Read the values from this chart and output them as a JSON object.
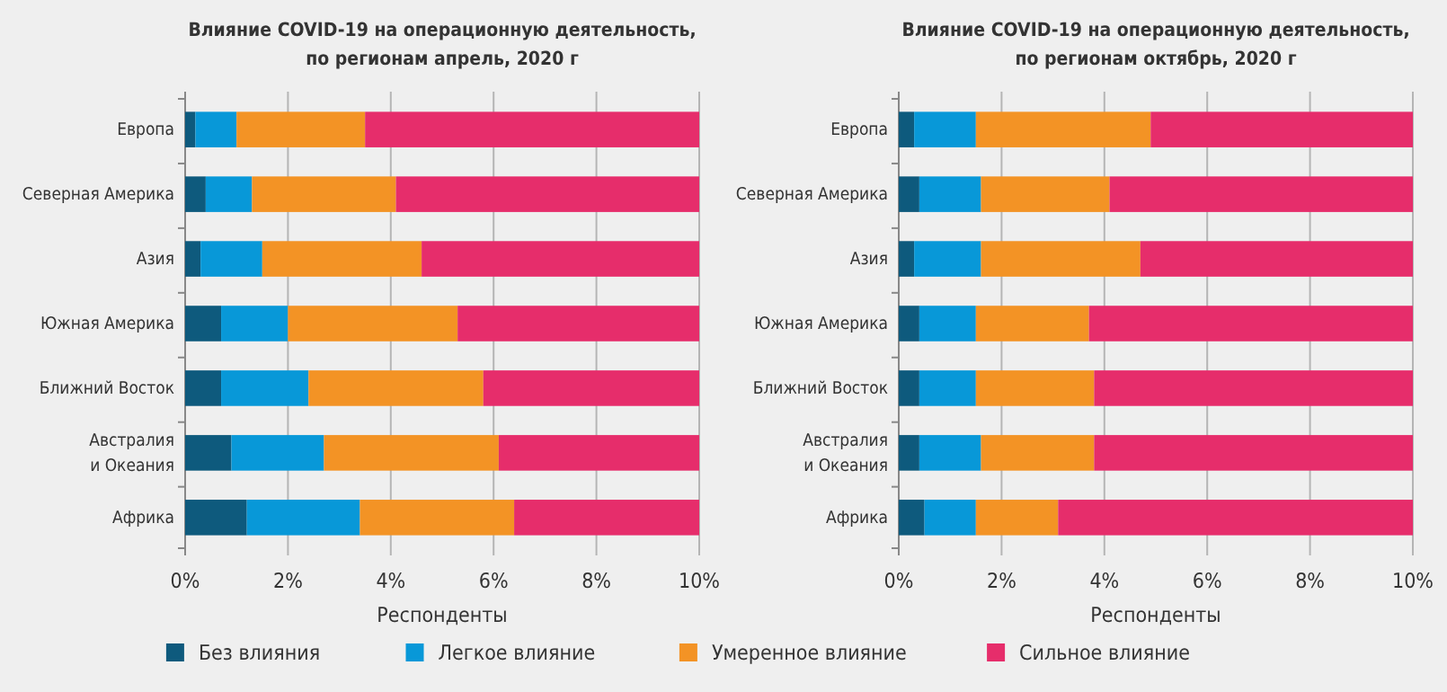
{
  "chart_data": [
    {
      "type": "bar",
      "orientation": "horizontal",
      "stacked": true,
      "title": "Влияние COVID-19 на операционную деятельность,\nпо регионам апрель, 2020 г",
      "xlabel": "Респонденты",
      "categories": [
        "Европа",
        "Северная Америка",
        "Азия",
        "Южная Америка",
        "Ближний Восток",
        "Австралия\nи Океания",
        "Африка"
      ],
      "xlim": [
        0,
        10
      ],
      "xticks": [
        {
          "value": 0,
          "label": "0%"
        },
        {
          "value": 2,
          "label": "2%"
        },
        {
          "value": 4,
          "label": "4%"
        },
        {
          "value": 6,
          "label": "6%"
        },
        {
          "value": 8,
          "label": "8%"
        },
        {
          "value": 10,
          "label": "10%"
        }
      ],
      "grid": "x",
      "legend": "bottom",
      "series": [
        {
          "name": "Без влияния",
          "color": "#0e5a7d",
          "values": [
            0.2,
            0.4,
            0.3,
            0.7,
            0.7,
            0.9,
            1.2
          ]
        },
        {
          "name": "Легкое влияние",
          "color": "#0898d8",
          "values": [
            0.8,
            0.9,
            1.2,
            1.3,
            1.7,
            1.8,
            2.2
          ]
        },
        {
          "name": "Умеренное влияние",
          "color": "#f39325",
          "values": [
            2.5,
            2.8,
            3.1,
            3.3,
            3.4,
            3.4,
            3.0
          ]
        },
        {
          "name": "Сильное влияние",
          "color": "#e62d6b",
          "values": [
            6.5,
            5.9,
            5.4,
            4.7,
            4.2,
            3.9,
            3.6
          ]
        }
      ]
    },
    {
      "type": "bar",
      "orientation": "horizontal",
      "stacked": true,
      "title": "Влияние COVID-19 на операционную деятельность,\nпо регионам октябрь, 2020 г",
      "xlabel": "Респонденты",
      "categories": [
        "Европа",
        "Северная Америка",
        "Азия",
        "Южная Америка",
        "Ближний Восток",
        "Австралия\nи Океания",
        "Африка"
      ],
      "xlim": [
        0,
        10
      ],
      "xticks": [
        {
          "value": 0,
          "label": "0%"
        },
        {
          "value": 2,
          "label": "2%"
        },
        {
          "value": 4,
          "label": "4%"
        },
        {
          "value": 6,
          "label": "6%"
        },
        {
          "value": 8,
          "label": "8%"
        },
        {
          "value": 10,
          "label": "10%"
        }
      ],
      "grid": "x",
      "series": [
        {
          "color": "#0e5a7d",
          "values": [
            0.3,
            0.4,
            0.3,
            0.4,
            0.4,
            0.4,
            0.5
          ]
        },
        {
          "color": "#0898d8",
          "values": [
            1.2,
            1.2,
            1.3,
            1.1,
            1.1,
            1.2,
            1.0
          ]
        },
        {
          "color": "#f39325",
          "values": [
            3.4,
            2.5,
            3.1,
            2.2,
            2.3,
            2.2,
            1.6
          ]
        },
        {
          "color": "#e62d6b",
          "values": [
            5.1,
            5.9,
            5.3,
            6.3,
            6.2,
            6.2,
            6.9
          ]
        }
      ]
    }
  ]
}
